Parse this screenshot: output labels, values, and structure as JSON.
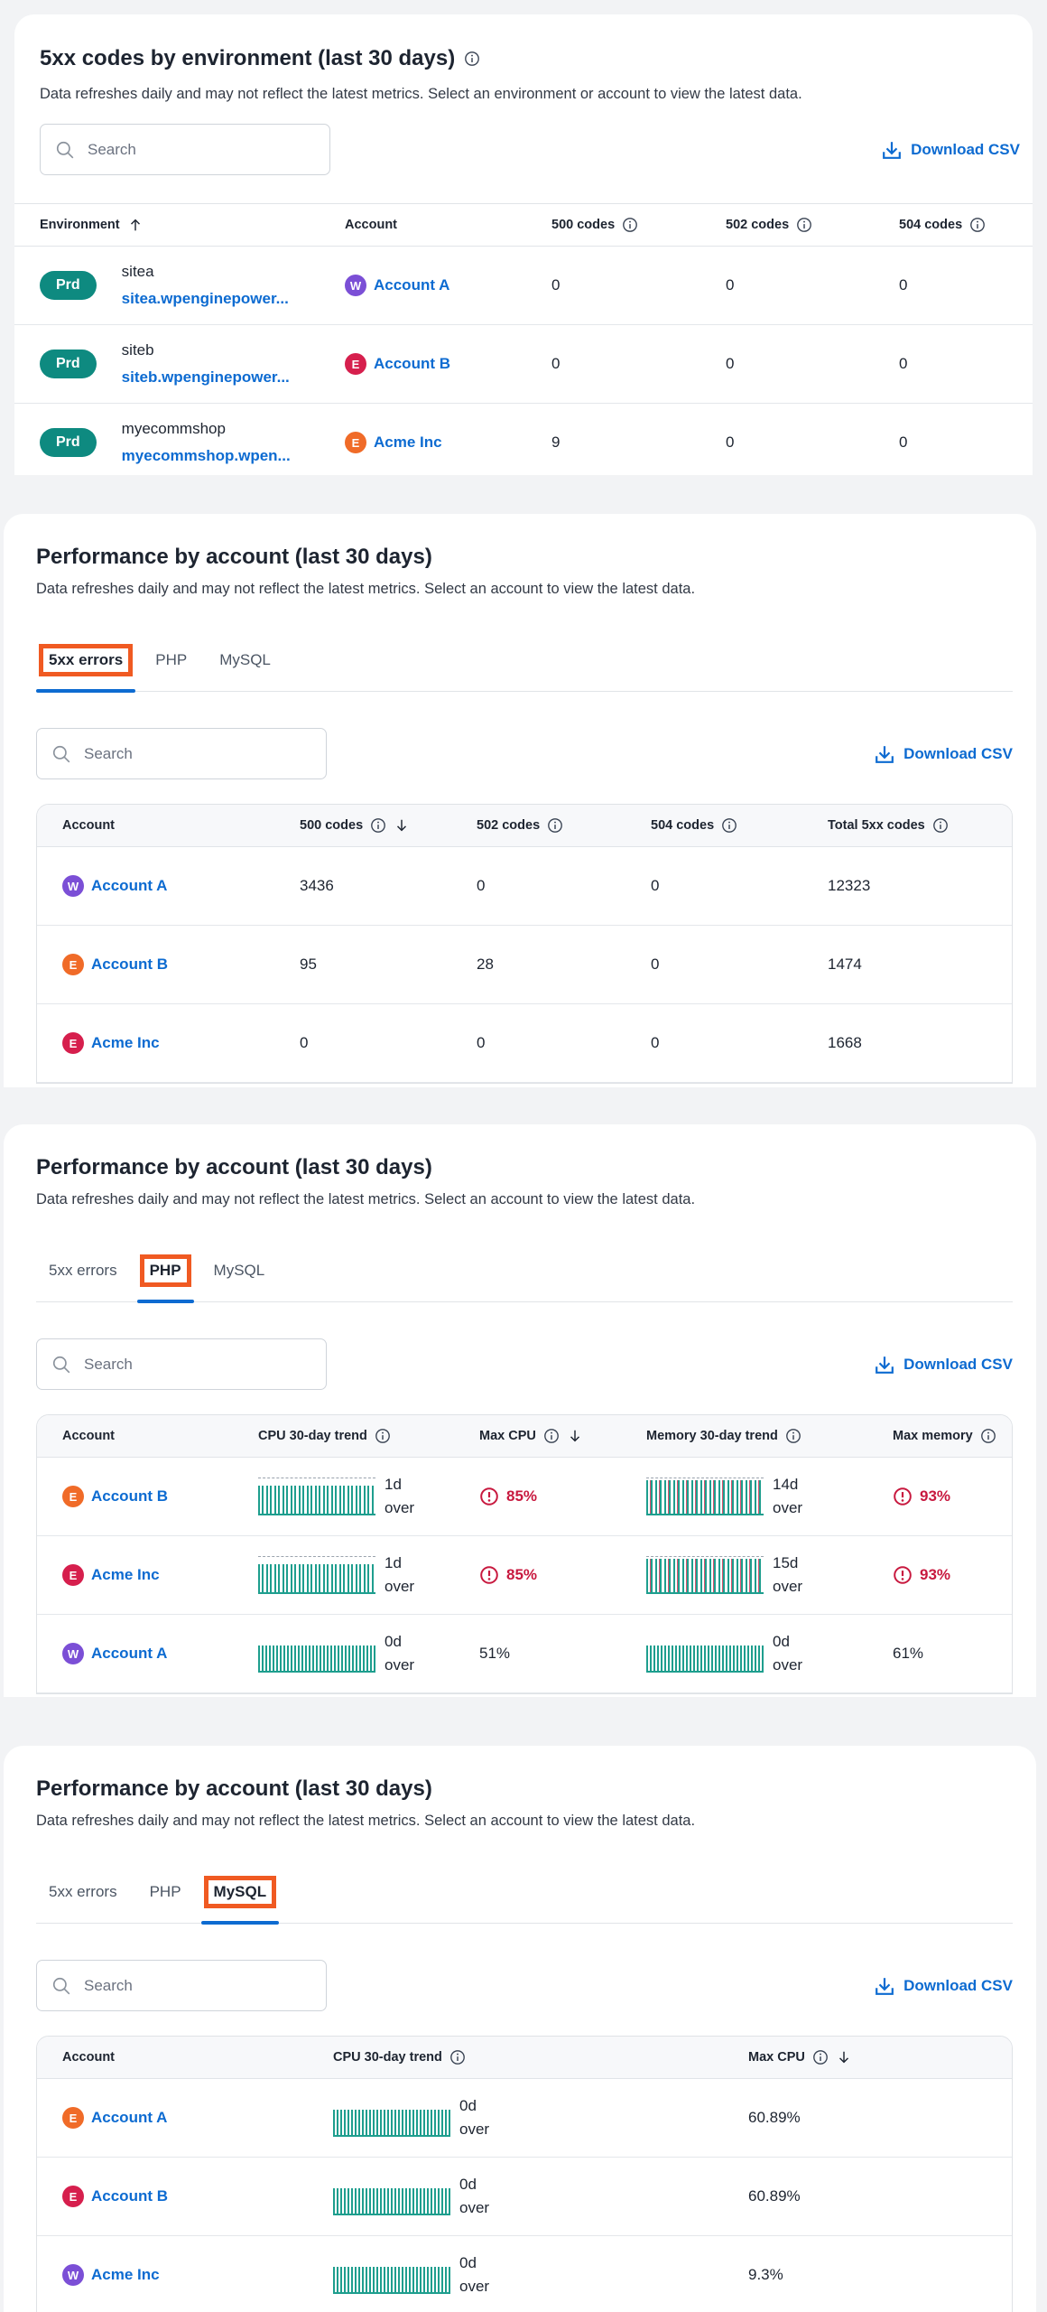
{
  "environment_codes": {
    "title": "5xx codes by environment (last 30 days)",
    "description": "Data refreshes daily and may not reflect the latest metrics. Select an environment or account to view the latest data.",
    "search_placeholder": "Search",
    "download_label": "Download CSV",
    "columns": [
      {
        "label": "Environment",
        "sort": "asc"
      },
      {
        "label": "Account"
      },
      {
        "label": "500 codes",
        "info": true
      },
      {
        "label": "502 codes",
        "info": true
      },
      {
        "label": "504 codes",
        "info": true
      }
    ],
    "rows": [
      {
        "badge": "Prd",
        "site": "sitea",
        "domain": "sitea.wpenginepower...",
        "account": {
          "initial": "W",
          "name": "Account A",
          "color": "#7b4fd6"
        },
        "values": [
          "0",
          "0",
          "0"
        ]
      },
      {
        "badge": "Prd",
        "site": "siteb",
        "domain": "siteb.wpenginepower...",
        "account": {
          "initial": "E",
          "name": "Account B",
          "color": "#d61f4d"
        },
        "values": [
          "0",
          "0",
          "0"
        ]
      },
      {
        "badge": "Prd",
        "site": "myecommshop",
        "domain": "myecommshop.wpen...",
        "account": {
          "initial": "E",
          "name": "Acme Inc",
          "color": "#f06b28"
        },
        "values": [
          "9",
          "0",
          "0"
        ]
      }
    ]
  },
  "performance_5xx": {
    "title": "Performance by account (last 30 days)",
    "description": "Data refreshes daily and may not reflect the latest metrics. Select an account to view the latest data.",
    "tabs": [
      "5xx errors",
      "PHP",
      "MySQL"
    ],
    "active_tab": 0,
    "search_placeholder": "Search",
    "download_label": "Download CSV",
    "columns": [
      {
        "label": "Account"
      },
      {
        "label": "500 codes",
        "info": true,
        "sort": "desc"
      },
      {
        "label": "502 codes",
        "info": true
      },
      {
        "label": "504 codes",
        "info": true
      },
      {
        "label": "Total 5xx codes",
        "info": true
      }
    ],
    "rows": [
      {
        "account": {
          "initial": "W",
          "name": "Account A",
          "color": "#7b4fd6"
        },
        "values": [
          "3436",
          "0",
          "0",
          "12323"
        ]
      },
      {
        "account": {
          "initial": "E",
          "name": "Account B",
          "color": "#f06b28"
        },
        "values": [
          "95",
          "28",
          "0",
          "1474"
        ]
      },
      {
        "account": {
          "initial": "E",
          "name": "Acme Inc",
          "color": "#d61f4d"
        },
        "values": [
          "0",
          "0",
          "0",
          "1668"
        ]
      }
    ]
  },
  "performance_php": {
    "title": "Performance by account (last 30 days)",
    "description": "Data refreshes daily and may not reflect the latest metrics. Select an account to view the latest data.",
    "tabs": [
      "5xx errors",
      "PHP",
      "MySQL"
    ],
    "active_tab": 1,
    "search_placeholder": "Search",
    "download_label": "Download CSV",
    "columns": [
      {
        "label": "Account"
      },
      {
        "label": "CPU 30-day trend",
        "info": true
      },
      {
        "label": "Max CPU",
        "info": true,
        "sort": "desc"
      },
      {
        "label": "Memory 30-day trend",
        "info": true
      },
      {
        "label": "Max memory",
        "info": true
      }
    ],
    "rows": [
      {
        "account": {
          "initial": "E",
          "name": "Account B",
          "color": "#f06b28"
        },
        "cpu_trend": "1d over",
        "max_cpu": "85%",
        "cpu_alert": true,
        "memory_trend": "14d over",
        "max_memory": "93%",
        "memory_alert": true
      },
      {
        "account": {
          "initial": "E",
          "name": "Acme Inc",
          "color": "#d61f4d"
        },
        "cpu_trend": "1d over",
        "max_cpu": "85%",
        "cpu_alert": true,
        "memory_trend": "15d over",
        "max_memory": "93%",
        "memory_alert": true
      },
      {
        "account": {
          "initial": "W",
          "name": "Account A",
          "color": "#7b4fd6"
        },
        "cpu_trend": "0d over",
        "max_cpu": "51%",
        "cpu_alert": false,
        "memory_trend": "0d over",
        "max_memory": "61%",
        "memory_alert": false
      }
    ]
  },
  "performance_mysql": {
    "title": "Performance by account (last 30 days)",
    "description": "Data refreshes daily and may not reflect the latest metrics. Select an account to view the latest data.",
    "tabs": [
      "5xx errors",
      "PHP",
      "MySQL"
    ],
    "active_tab": 2,
    "search_placeholder": "Search",
    "download_label": "Download CSV",
    "columns": [
      {
        "label": "Account"
      },
      {
        "label": "CPU 30-day trend",
        "info": true
      },
      {
        "label": "Max CPU",
        "info": true,
        "sort": "desc"
      }
    ],
    "rows": [
      {
        "account": {
          "initial": "E",
          "name": "Account A",
          "color": "#f06b28"
        },
        "cpu_trend": "0d over",
        "max_cpu": "60.89%"
      },
      {
        "account": {
          "initial": "E",
          "name": "Account B",
          "color": "#d61f4d"
        },
        "cpu_trend": "0d over",
        "max_cpu": "60.89%"
      },
      {
        "account": {
          "initial": "W",
          "name": "Acme Inc",
          "color": "#7b4fd6"
        },
        "cpu_trend": "0d over",
        "max_cpu": "9.3%"
      }
    ]
  }
}
